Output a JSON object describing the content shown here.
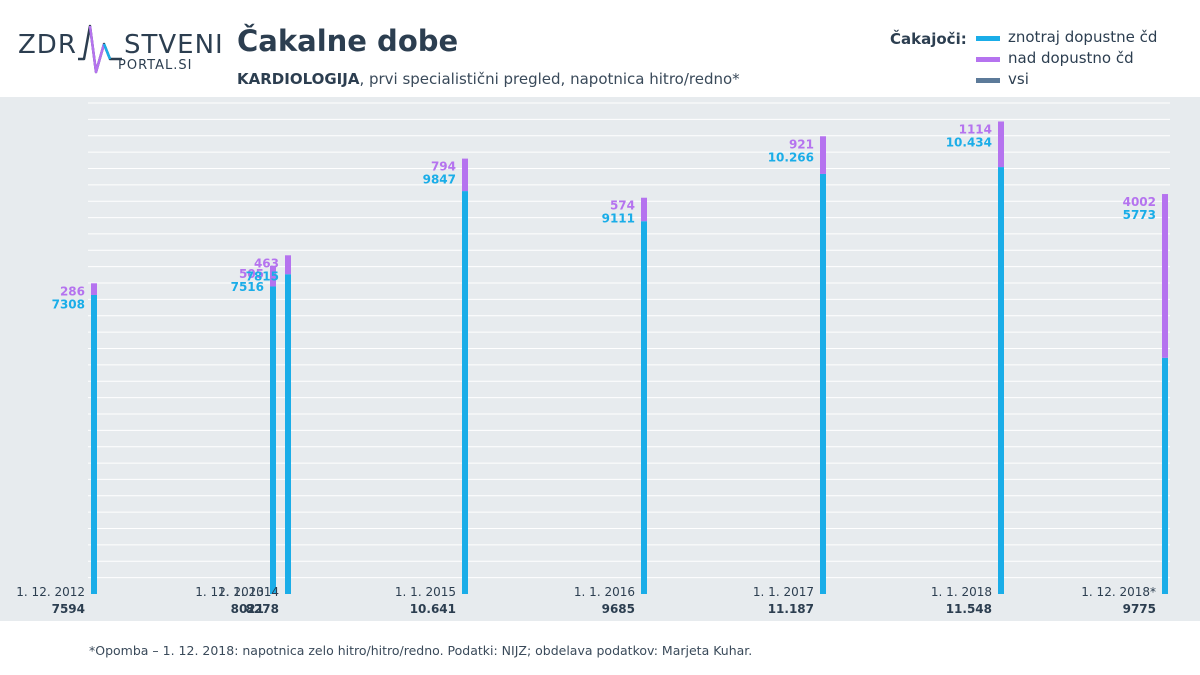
{
  "logo": {
    "part1": "ZDR",
    "part2": "STVENI",
    "sub": "PORTAL.SI"
  },
  "title": "Čakalne dobe",
  "subtitle_bold": "KARDIOLOGIJA",
  "subtitle_rest": ", prvi specialistični pregled, napotnica hitro/redno*",
  "legend": {
    "title": "Čakajoči:",
    "items": [
      {
        "label": "znotraj dopustne čd",
        "color": "#1aade8"
      },
      {
        "label": "nad dopustno čd",
        "color": "#b573ef"
      },
      {
        "label": "vsi",
        "color": "#5c7a99"
      }
    ]
  },
  "footnote": "*Opomba – 1. 12. 2018: napotnica zelo hitro/hitro/redno. Podatki: NIJZ; obdelava podatkov: Marjeta Kuhar.",
  "chart_data": {
    "type": "bar",
    "stacked": true,
    "categories": [
      "1. 12. 2012",
      "1. 12. 2013",
      "1. 1. 2014",
      "1. 1. 2015",
      "1. 1. 2016",
      "1. 1. 2017",
      "1. 1. 2018",
      "1. 12. 2018*"
    ],
    "series": [
      {
        "name": "znotraj dopustne čd",
        "color": "#1aade8",
        "values": [
          7308,
          7516,
          7815,
          9847,
          9111,
          10266,
          10434,
          5773
        ],
        "labels": [
          "7308",
          "7516",
          "7815",
          "9847",
          "9111",
          "10.266",
          "10.434",
          "5773"
        ]
      },
      {
        "name": "nad dopustno čd",
        "color": "#b573ef",
        "values": [
          286,
          505,
          463,
          794,
          574,
          921,
          1114,
          4002
        ],
        "labels": [
          "286",
          "505",
          "463",
          "794",
          "574",
          "921",
          "1114",
          "4002"
        ]
      }
    ],
    "totals": {
      "name": "vsi",
      "values": [
        7594,
        8021,
        8278,
        10641,
        9685,
        11187,
        11548,
        9775
      ],
      "labels": [
        "7594",
        "8021",
        "8278",
        "10.641",
        "9685",
        "11.187",
        "11.548",
        "9775"
      ]
    },
    "ylim": [
      0,
      12000
    ],
    "grid": true,
    "legend": "top-right"
  }
}
